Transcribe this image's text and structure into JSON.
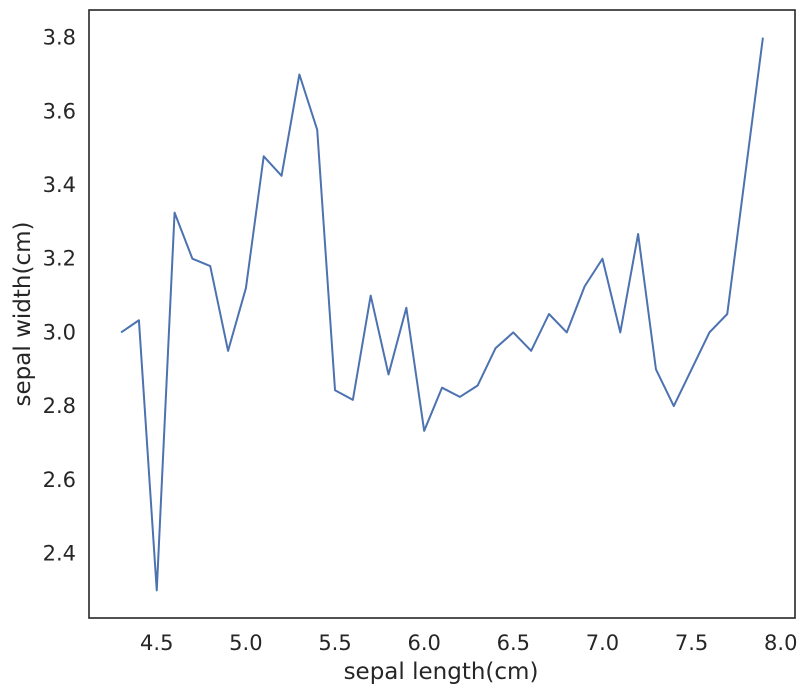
{
  "chart_data": {
    "type": "line",
    "title": "",
    "xlabel": "sepal length(cm)",
    "ylabel": "sepal width(cm)",
    "xlim": [
      4.12,
      8.08
    ],
    "ylim": [
      2.225,
      3.875
    ],
    "xticks": [
      4.5,
      5.0,
      5.5,
      6.0,
      6.5,
      7.0,
      7.5,
      8.0
    ],
    "xtick_labels": [
      "4.5",
      "5.0",
      "5.5",
      "6.0",
      "6.5",
      "7.0",
      "7.5",
      "8.0"
    ],
    "yticks": [
      2.4,
      2.6,
      2.8,
      3.0,
      3.2,
      3.4,
      3.6,
      3.8
    ],
    "ytick_labels": [
      "2.4",
      "2.6",
      "2.8",
      "3.0",
      "3.2",
      "3.4",
      "3.6",
      "3.8"
    ],
    "grid": false,
    "line_color": "#4c72b0",
    "series": [
      {
        "x": [
          4.3,
          4.4,
          4.5,
          4.6,
          4.7,
          4.8,
          4.9,
          5.0,
          5.1,
          5.2,
          5.3,
          5.4,
          5.5,
          5.6,
          5.7,
          5.8,
          5.9,
          6.0,
          6.1,
          6.2,
          6.3,
          6.4,
          6.5,
          6.6,
          6.7,
          6.8,
          6.9,
          7.0,
          7.1,
          7.2,
          7.3,
          7.4,
          7.6,
          7.7,
          7.9
        ],
        "y": [
          3.0,
          3.033,
          2.3,
          3.325,
          3.2,
          3.18,
          2.95,
          3.12,
          3.478,
          3.425,
          3.7,
          3.55,
          2.843,
          2.817,
          3.1,
          2.886,
          3.067,
          2.733,
          2.85,
          2.825,
          2.856,
          2.957,
          3.0,
          2.95,
          3.05,
          3.0,
          3.125,
          3.2,
          3.0,
          3.267,
          2.9,
          2.8,
          3.0,
          3.05,
          3.8
        ]
      }
    ]
  }
}
